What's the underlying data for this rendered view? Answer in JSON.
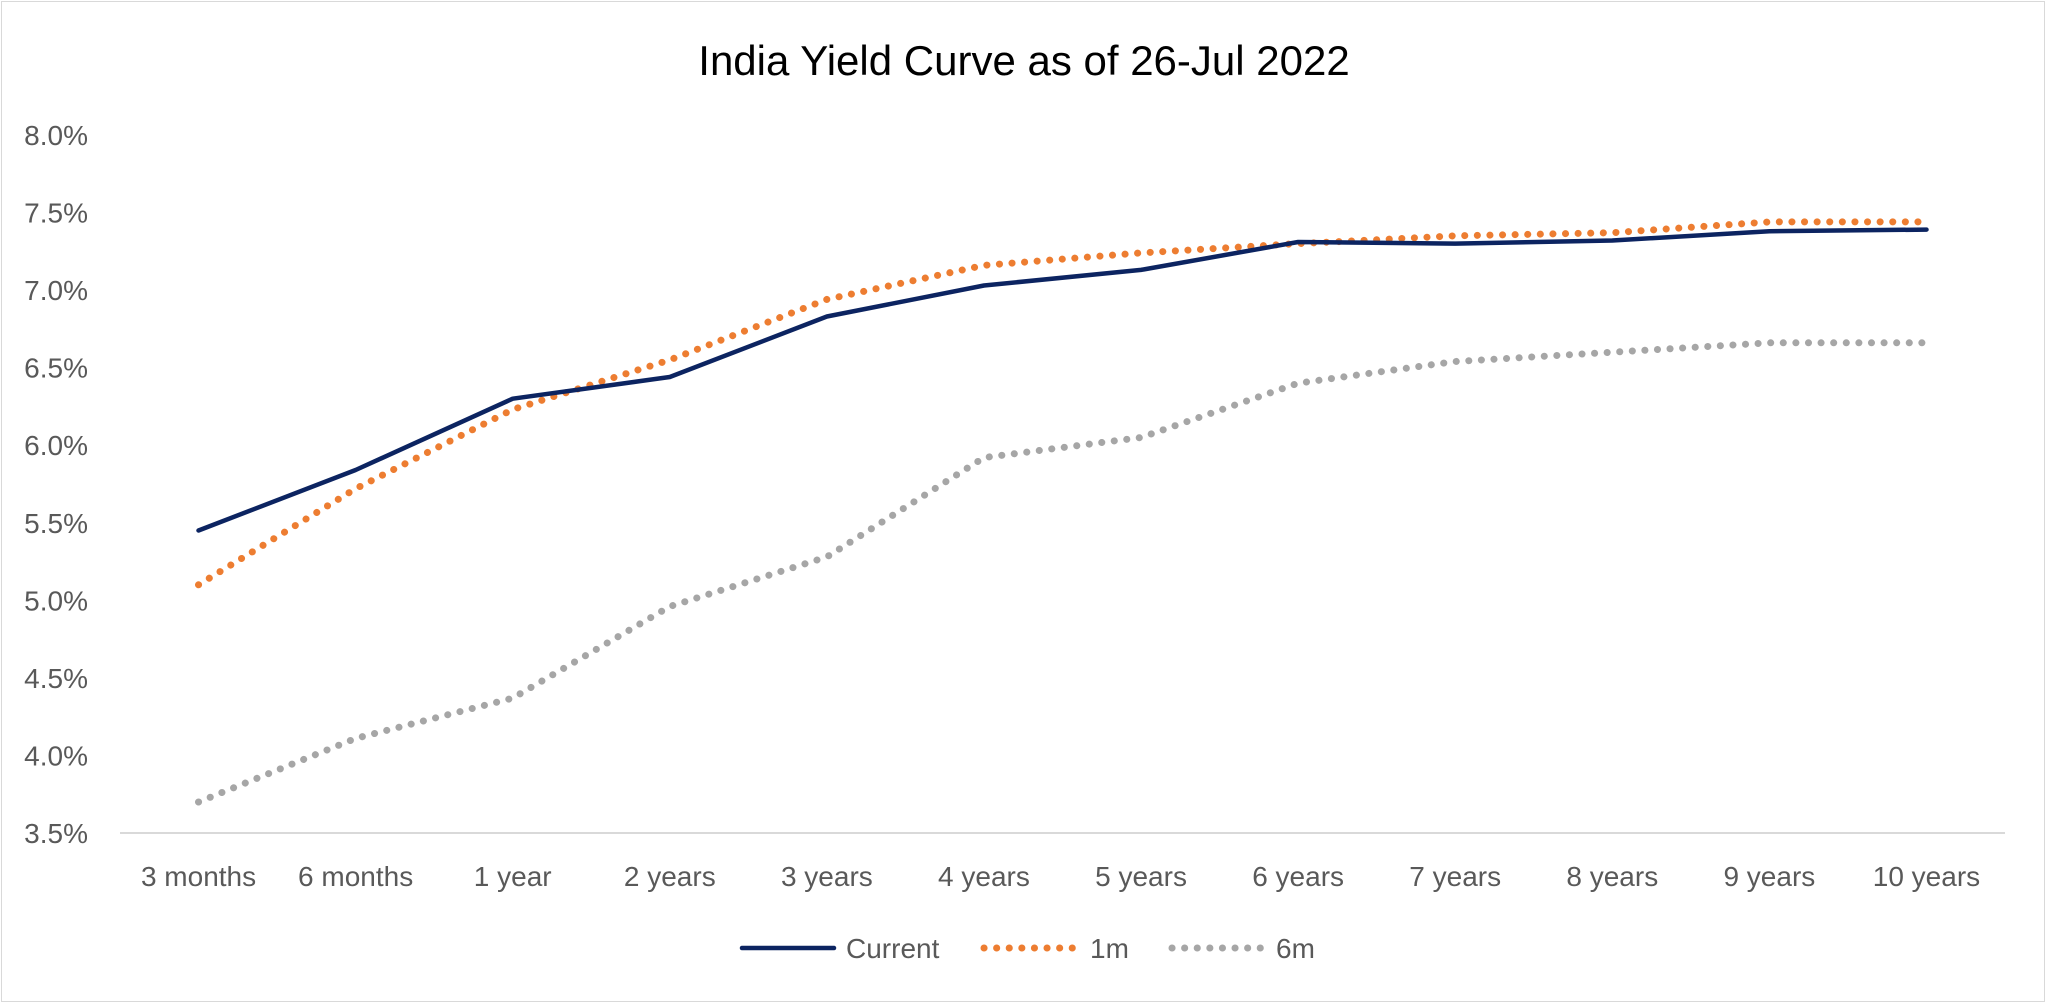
{
  "chart_data": {
    "type": "line",
    "title": "India Yield Curve as of 26-Jul 2022",
    "xlabel": "",
    "ylabel": "",
    "categories": [
      "3 months",
      "6 months",
      "1 year",
      "2 years",
      "3 years",
      "4 years",
      "5 years",
      "6 years",
      "7 years",
      "8 years",
      "9 years",
      "10 years"
    ],
    "ylim": [
      3.5,
      8.0
    ],
    "y_ticks": [
      "3.5%",
      "4.0%",
      "4.5%",
      "5.0%",
      "5.5%",
      "6.0%",
      "6.5%",
      "7.0%",
      "7.5%",
      "8.0%"
    ],
    "y_tick_values": [
      3.5,
      4.0,
      4.5,
      5.0,
      5.5,
      6.0,
      6.5,
      7.0,
      7.5,
      8.0
    ],
    "grid": false,
    "legend_position": "bottom",
    "series": [
      {
        "name": "Current",
        "color": "#0c2461",
        "style": "solid",
        "values": [
          5.45,
          5.84,
          6.3,
          6.44,
          6.83,
          7.03,
          7.13,
          7.31,
          7.3,
          7.32,
          7.38,
          7.39
        ]
      },
      {
        "name": "1m",
        "color": "#ed7d31",
        "style": "dotted",
        "values": [
          5.1,
          5.72,
          6.23,
          6.55,
          6.94,
          7.16,
          7.24,
          7.3,
          7.35,
          7.37,
          7.44,
          7.44
        ]
      },
      {
        "name": "6m",
        "color": "#a6a6a6",
        "style": "dotted",
        "values": [
          3.7,
          4.11,
          4.37,
          4.96,
          5.28,
          5.92,
          6.05,
          6.4,
          6.54,
          6.6,
          6.66,
          6.66
        ]
      }
    ]
  }
}
